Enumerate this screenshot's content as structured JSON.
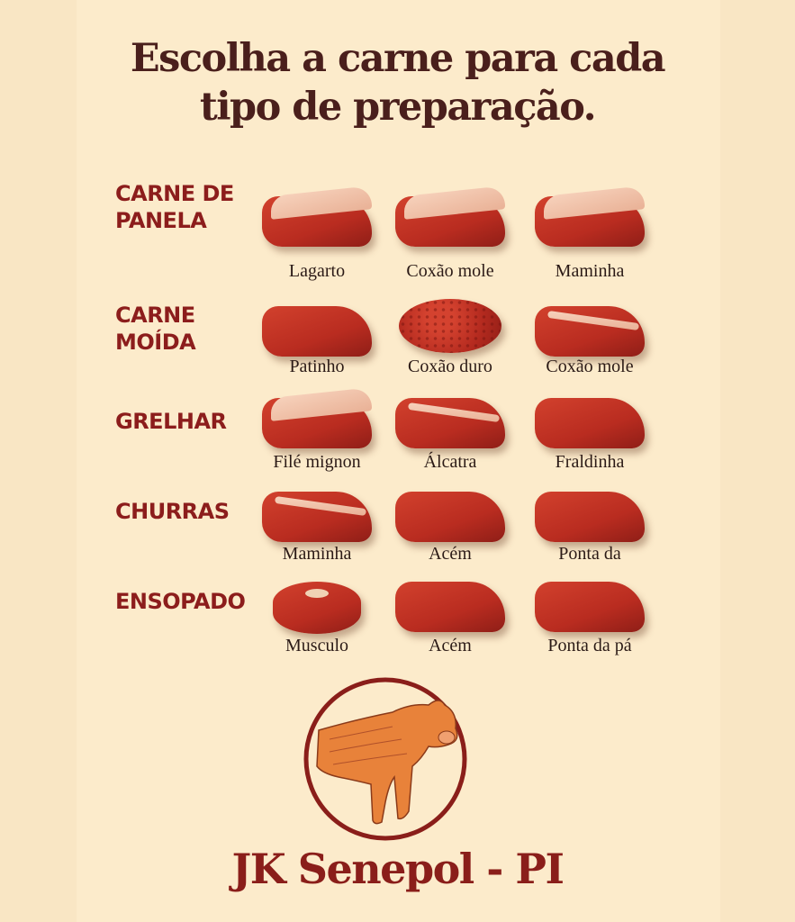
{
  "title": {
    "line1": "Escolha a carne para cada",
    "line2": "tipo de preparação."
  },
  "colors": {
    "background": "#fcebcb",
    "title": "#4a1f1c",
    "category": "#8c1d1c",
    "meat": "#b92c20",
    "fat": "#f3c9b0",
    "logo": "#8a1e1a",
    "bull": "#e8823a"
  },
  "categories": [
    {
      "label_lines": [
        "CARNE DE",
        "PANELA"
      ],
      "cuts": [
        {
          "name": "Lagarto",
          "style": "fat-cap"
        },
        {
          "name": "Coxão mole",
          "style": "fat-cap"
        },
        {
          "name": "Maminha",
          "style": "fat-cap"
        }
      ]
    },
    {
      "label_lines": [
        "CARNE",
        "MOÍDA"
      ],
      "cuts": [
        {
          "name": "Patinho",
          "style": "lean"
        },
        {
          "name": "Coxão duro",
          "style": "ground"
        },
        {
          "name": "Coxão mole",
          "style": "fat-stripe"
        }
      ]
    },
    {
      "label_lines": [
        "GRELHAR"
      ],
      "cuts": [
        {
          "name": "Filé mignon",
          "style": "fat-cap"
        },
        {
          "name": "Álcatra",
          "style": "fat-stripe"
        },
        {
          "name": "Fraldinha",
          "style": "lean"
        }
      ]
    },
    {
      "label_lines": [
        "CHURRAS"
      ],
      "cuts": [
        {
          "name": "Maminha",
          "style": "fat-stripe"
        },
        {
          "name": "Acém",
          "style": "lean"
        },
        {
          "name": "Ponta da",
          "style": "lean"
        }
      ]
    },
    {
      "label_lines": [
        "ENSOPADO"
      ],
      "cuts": [
        {
          "name": "Musculo",
          "style": "round-bone"
        },
        {
          "name": "Acém",
          "style": "lean"
        },
        {
          "name": "Ponta da pá",
          "style": "lean"
        }
      ]
    }
  ],
  "logo": {
    "icon": "bull-in-circle",
    "brand": "JK Senepol - PI"
  }
}
